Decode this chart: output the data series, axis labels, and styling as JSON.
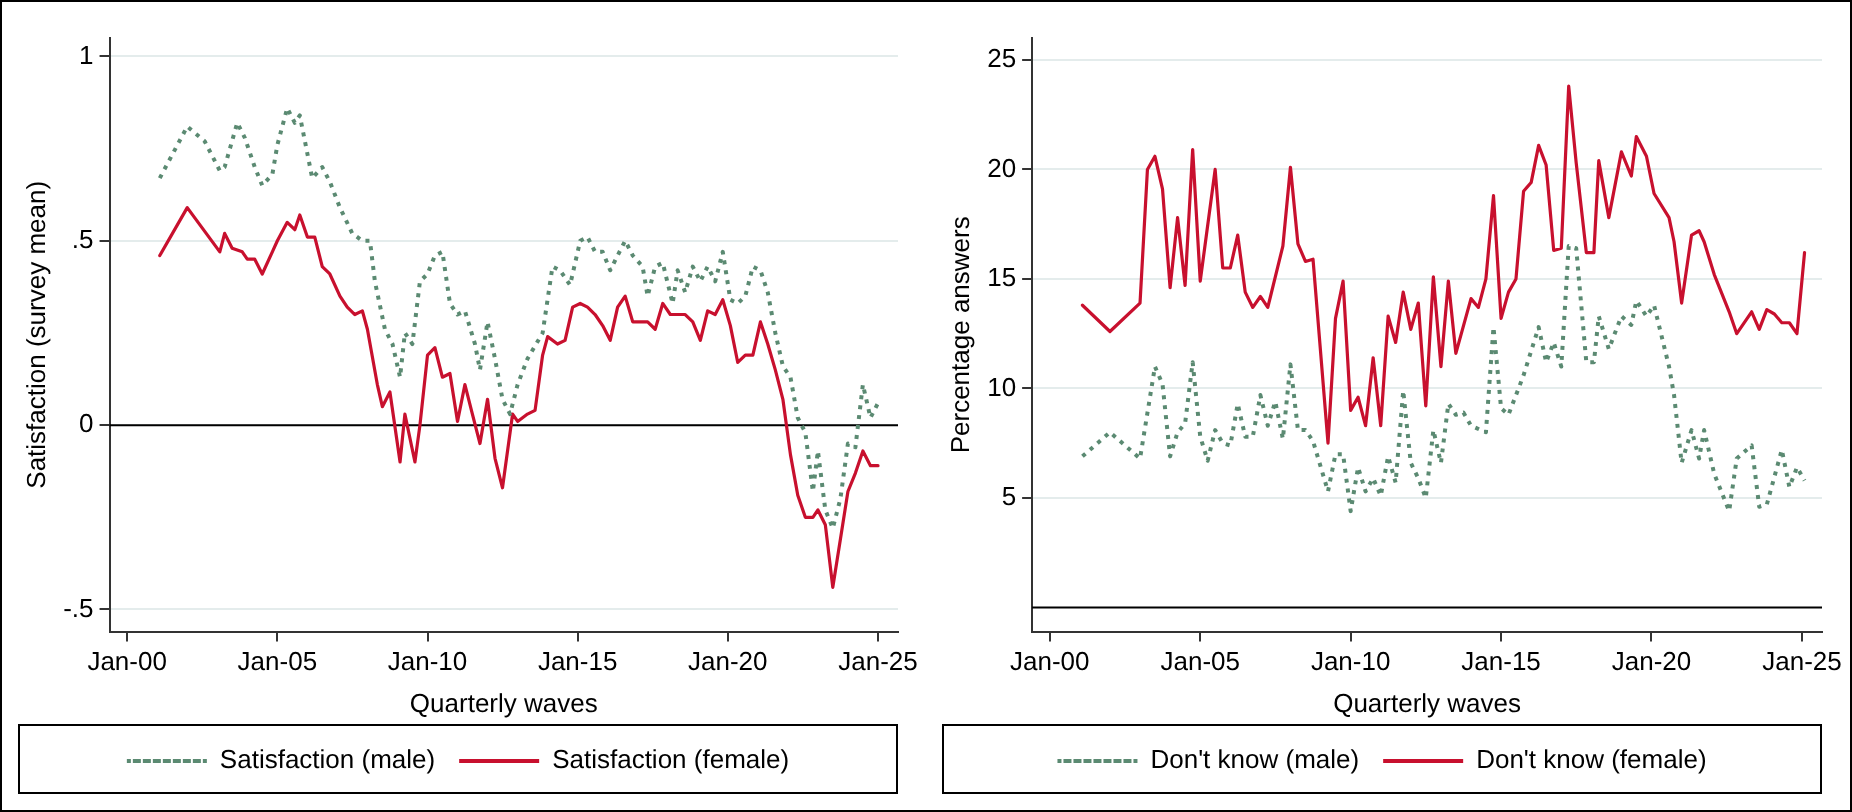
{
  "chart_data": [
    {
      "type": "line",
      "xlabel": "Quarterly waves",
      "ylabel": "Satisfaction (survey mean)",
      "xlim": [
        "1999-06",
        "2025-09"
      ],
      "ylim": [
        -0.56,
        1.05
      ],
      "xticks": [
        {
          "value": "2000-01",
          "label": "Jan-00"
        },
        {
          "value": "2005-01",
          "label": "Jan-05"
        },
        {
          "value": "2010-01",
          "label": "Jan-10"
        },
        {
          "value": "2015-01",
          "label": "Jan-15"
        },
        {
          "value": "2020-01",
          "label": "Jan-20"
        },
        {
          "value": "2025-01",
          "label": "Jan-25"
        }
      ],
      "yticks": [
        {
          "value": -0.5,
          "label": "-.5"
        },
        0,
        {
          "value": 0.5,
          "label": ".5"
        },
        1
      ],
      "grid": "y",
      "legend": "bottom",
      "marker": "none",
      "ref_lines": [
        {
          "axis": "y",
          "value": 0,
          "color": "#000000"
        }
      ],
      "series": [
        {
          "name": "Satisfaction (male)",
          "color": "#5b8a72",
          "line_style": "dotted",
          "x": [
            "2001-02",
            "2002-01",
            "2002-08",
            "2003-02",
            "2003-04",
            "2003-09",
            "2003-12",
            "2004-04",
            "2004-07",
            "2004-11",
            "2005-01",
            "2005-05",
            "2005-08",
            "2005-10",
            "2006-03",
            "2006-07",
            "2006-10",
            "2007-02",
            "2007-07",
            "2007-11",
            "2008-02",
            "2008-04",
            "2008-08",
            "2008-11",
            "2009-02",
            "2009-04",
            "2009-07",
            "2009-10",
            "2010-01",
            "2010-04",
            "2010-07",
            "2010-10",
            "2011-01",
            "2011-04",
            "2011-08",
            "2011-10",
            "2012-01",
            "2012-04",
            "2012-07",
            "2012-10",
            "2013-01",
            "2013-05",
            "2013-11",
            "2014-03",
            "2014-06",
            "2014-10",
            "2015-02",
            "2015-05",
            "2015-08",
            "2015-11",
            "2016-02",
            "2016-05",
            "2016-08",
            "2016-11",
            "2017-03",
            "2017-05",
            "2017-08",
            "2017-11",
            "2018-03",
            "2018-05",
            "2018-08",
            "2018-11",
            "2019-02",
            "2019-05",
            "2019-08",
            "2019-11",
            "2020-02",
            "2020-05",
            "2020-08",
            "2020-11",
            "2021-02",
            "2021-05",
            "2021-08",
            "2021-11",
            "2022-02",
            "2022-05",
            "2022-08",
            "2022-11",
            "2023-01",
            "2023-04",
            "2023-07",
            "2023-10",
            "2024-01",
            "2024-04",
            "2024-07",
            "2024-10",
            "2025-01"
          ],
          "values": [
            0.67,
            0.81,
            0.77,
            0.69,
            0.7,
            0.82,
            0.78,
            0.7,
            0.65,
            0.68,
            0.76,
            0.86,
            0.82,
            0.84,
            0.67,
            0.7,
            0.66,
            0.59,
            0.52,
            0.5,
            0.5,
            0.39,
            0.26,
            0.22,
            0.13,
            0.25,
            0.22,
            0.39,
            0.41,
            0.46,
            0.47,
            0.33,
            0.3,
            0.31,
            0.22,
            0.15,
            0.28,
            0.18,
            0.07,
            0.03,
            0.11,
            0.18,
            0.25,
            0.43,
            0.42,
            0.38,
            0.5,
            0.51,
            0.47,
            0.47,
            0.42,
            0.46,
            0.5,
            0.46,
            0.43,
            0.35,
            0.43,
            0.44,
            0.33,
            0.42,
            0.36,
            0.43,
            0.39,
            0.43,
            0.39,
            0.47,
            0.34,
            0.33,
            0.35,
            0.43,
            0.42,
            0.36,
            0.25,
            0.16,
            0.13,
            0.02,
            -0.02,
            -0.18,
            -0.07,
            -0.23,
            -0.28,
            -0.2,
            -0.05,
            -0.06,
            0.11,
            0.02,
            0.06
          ]
        },
        {
          "name": "Satisfaction (female)",
          "color": "#c8102e",
          "line_style": "solid",
          "x": [
            "2001-02",
            "2002-01",
            "2003-02",
            "2003-04",
            "2003-07",
            "2003-11",
            "2004-01",
            "2004-04",
            "2004-07",
            "2004-11",
            "2005-01",
            "2005-05",
            "2005-08",
            "2005-10",
            "2006-01",
            "2006-04",
            "2006-07",
            "2006-10",
            "2007-02",
            "2007-05",
            "2007-08",
            "2007-11",
            "2008-01",
            "2008-05",
            "2008-07",
            "2008-10",
            "2009-02",
            "2009-04",
            "2009-08",
            "2009-10",
            "2010-01",
            "2010-04",
            "2010-07",
            "2010-10",
            "2011-01",
            "2011-04",
            "2011-07",
            "2011-10",
            "2012-01",
            "2012-04",
            "2012-07",
            "2012-11",
            "2013-01",
            "2013-05",
            "2013-08",
            "2013-11",
            "2014-01",
            "2014-05",
            "2014-08",
            "2014-11",
            "2015-02",
            "2015-05",
            "2015-08",
            "2015-11",
            "2016-02",
            "2016-05",
            "2016-08",
            "2016-11",
            "2017-02",
            "2017-05",
            "2017-08",
            "2017-11",
            "2018-02",
            "2018-05",
            "2018-08",
            "2018-11",
            "2019-02",
            "2019-05",
            "2019-08",
            "2019-11",
            "2020-02",
            "2020-05",
            "2020-08",
            "2020-11",
            "2021-02",
            "2021-05",
            "2021-08",
            "2021-11",
            "2022-02",
            "2022-05",
            "2022-08",
            "2022-11",
            "2023-01",
            "2023-04",
            "2023-07",
            "2023-10",
            "2024-01",
            "2024-04",
            "2024-07",
            "2024-10",
            "2025-01"
          ],
          "values": [
            0.46,
            0.59,
            0.47,
            0.52,
            0.48,
            0.47,
            0.45,
            0.45,
            0.41,
            0.47,
            0.5,
            0.55,
            0.53,
            0.57,
            0.51,
            0.51,
            0.43,
            0.41,
            0.35,
            0.32,
            0.3,
            0.31,
            0.26,
            0.11,
            0.05,
            0.09,
            -0.1,
            0.03,
            -0.1,
            0,
            0.19,
            0.21,
            0.13,
            0.14,
            0.01,
            0.11,
            0.03,
            -0.05,
            0.07,
            -0.09,
            -0.17,
            0.03,
            0.01,
            0.03,
            0.04,
            0.19,
            0.24,
            0.22,
            0.23,
            0.32,
            0.33,
            0.32,
            0.3,
            0.27,
            0.23,
            0.32,
            0.35,
            0.28,
            0.28,
            0.28,
            0.26,
            0.33,
            0.3,
            0.3,
            0.3,
            0.28,
            0.23,
            0.31,
            0.3,
            0.34,
            0.27,
            0.17,
            0.19,
            0.19,
            0.28,
            0.22,
            0.15,
            0.07,
            -0.08,
            -0.19,
            -0.25,
            -0.25,
            -0.23,
            -0.27,
            -0.44,
            -0.31,
            -0.18,
            -0.13,
            -0.07,
            -0.11,
            -0.11
          ]
        }
      ]
    },
    {
      "type": "line",
      "xlabel": "Quarterly waves",
      "ylabel": "Percentage answers",
      "xlim": [
        "1999-06",
        "2025-09"
      ],
      "ylim": [
        -1.1,
        26
      ],
      "xticks": [
        {
          "value": "2000-01",
          "label": "Jan-00"
        },
        {
          "value": "2005-01",
          "label": "Jan-05"
        },
        {
          "value": "2010-01",
          "label": "Jan-10"
        },
        {
          "value": "2015-01",
          "label": "Jan-15"
        },
        {
          "value": "2020-01",
          "label": "Jan-20"
        },
        {
          "value": "2025-01",
          "label": "Jan-25"
        }
      ],
      "yticks": [
        5,
        10,
        15,
        20,
        25
      ],
      "grid": "y",
      "legend": "bottom",
      "marker": "none",
      "ref_lines": [
        {
          "axis": "y",
          "value": 0,
          "color": "#000000"
        }
      ],
      "series": [
        {
          "name": "Don't know (male)",
          "color": "#5b8a72",
          "line_style": "dotted",
          "x": [
            "2001-02",
            "2002-01",
            "2003-01",
            "2003-07",
            "2003-10",
            "2004-01",
            "2004-04",
            "2004-07",
            "2004-10",
            "2005-01",
            "2005-04",
            "2005-07",
            "2005-10",
            "2006-01",
            "2006-04",
            "2006-07",
            "2006-10",
            "2007-01",
            "2007-04",
            "2007-07",
            "2007-10",
            "2008-01",
            "2008-04",
            "2008-07",
            "2008-10",
            "2009-04",
            "2009-07",
            "2009-10",
            "2010-01",
            "2010-04",
            "2010-07",
            "2010-10",
            "2011-01",
            "2011-04",
            "2011-07",
            "2011-10",
            "2012-01",
            "2012-04",
            "2012-07",
            "2012-10",
            "2013-01",
            "2013-04",
            "2013-07",
            "2013-10",
            "2014-01",
            "2014-07",
            "2014-10",
            "2015-01",
            "2015-04",
            "2015-10",
            "2016-04",
            "2016-07",
            "2016-10",
            "2017-01",
            "2017-04",
            "2017-07",
            "2017-11",
            "2018-02",
            "2018-04",
            "2018-08",
            "2019-01",
            "2019-05",
            "2019-07",
            "2019-11",
            "2020-02",
            "2020-08",
            "2020-10",
            "2021-01",
            "2021-05",
            "2021-08",
            "2021-10",
            "2022-02",
            "2022-08",
            "2022-11",
            "2023-05",
            "2023-08",
            "2023-11",
            "2024-05",
            "2024-08",
            "2024-11",
            "2025-02"
          ],
          "values": [
            6.9,
            8,
            6.8,
            11,
            10.2,
            6.9,
            8,
            8.4,
            11.2,
            7.8,
            6.7,
            8.1,
            7.5,
            7.4,
            9.3,
            7.8,
            7.8,
            9.7,
            8.3,
            9.4,
            7.7,
            11.1,
            8.1,
            8.1,
            7.6,
            5.3,
            7,
            7,
            4.4,
            6.4,
            5.3,
            5.9,
            5.1,
            6.9,
            5.7,
            9.9,
            6.6,
            5.9,
            5,
            8.1,
            6.6,
            9.3,
            8.8,
            8.9,
            8.3,
            8,
            12.8,
            9.1,
            8.8,
            10.6,
            12.8,
            11.2,
            12.1,
            11,
            16.5,
            16.4,
            11.2,
            11.2,
            13.3,
            11.8,
            13.3,
            12.9,
            14,
            13.3,
            13.8,
            11,
            9.7,
            6.6,
            8.1,
            6.8,
            8.1,
            6.1,
            4.4,
            6.8,
            7.4,
            4.6,
            4.7,
            7.2,
            5.5,
            6.4,
            5.8
          ]
        },
        {
          "name": "Don't know (female)",
          "color": "#c8102e",
          "line_style": "solid",
          "x": [
            "2001-02",
            "2002-01",
            "2003-01",
            "2003-04",
            "2003-07",
            "2003-10",
            "2004-01",
            "2004-04",
            "2004-07",
            "2004-10",
            "2005-01",
            "2005-07",
            "2005-10",
            "2006-01",
            "2006-04",
            "2006-07",
            "2006-10",
            "2007-01",
            "2007-04",
            "2007-10",
            "2008-01",
            "2008-04",
            "2008-07",
            "2008-10",
            "2009-04",
            "2009-07",
            "2009-10",
            "2010-01",
            "2010-04",
            "2010-07",
            "2010-10",
            "2011-01",
            "2011-04",
            "2011-07",
            "2011-10",
            "2012-01",
            "2012-04",
            "2012-07",
            "2012-10",
            "2013-01",
            "2013-04",
            "2013-07",
            "2014-01",
            "2014-04",
            "2014-07",
            "2014-10",
            "2015-01",
            "2015-04",
            "2015-07",
            "2015-10",
            "2016-01",
            "2016-04",
            "2016-07",
            "2016-10",
            "2017-01",
            "2017-04",
            "2017-07",
            "2017-11",
            "2018-02",
            "2018-04",
            "2018-08",
            "2019-01",
            "2019-05",
            "2019-07",
            "2019-11",
            "2020-02",
            "2020-08",
            "2020-10",
            "2021-01",
            "2021-05",
            "2021-08",
            "2021-10",
            "2022-02",
            "2022-08",
            "2022-11",
            "2023-05",
            "2023-08",
            "2023-11",
            "2024-02",
            "2024-05",
            "2024-08",
            "2024-11",
            "2025-02"
          ],
          "values": [
            13.8,
            12.6,
            13.9,
            20,
            20.6,
            19.1,
            14.6,
            17.8,
            14.7,
            20.9,
            14.9,
            20,
            15.5,
            15.5,
            17,
            14.4,
            13.7,
            14.2,
            13.7,
            16.5,
            20.1,
            16.6,
            15.8,
            15.9,
            7.5,
            13.2,
            14.9,
            9,
            9.6,
            8.3,
            11.4,
            8.3,
            13.3,
            12.1,
            14.4,
            12.7,
            13.9,
            9.2,
            15.1,
            11,
            14.9,
            11.6,
            14.1,
            13.7,
            15,
            18.8,
            13.2,
            14.4,
            15,
            19,
            19.4,
            21.1,
            20.2,
            16.3,
            16.4,
            23.8,
            20.3,
            16.2,
            16.2,
            20.4,
            17.8,
            20.8,
            19.7,
            21.5,
            20.6,
            18.9,
            17.8,
            16.7,
            13.9,
            17,
            17.2,
            16.7,
            15.2,
            13.5,
            12.5,
            13.5,
            12.7,
            13.6,
            13.4,
            13,
            13,
            12.5,
            16.2
          ]
        }
      ]
    }
  ]
}
